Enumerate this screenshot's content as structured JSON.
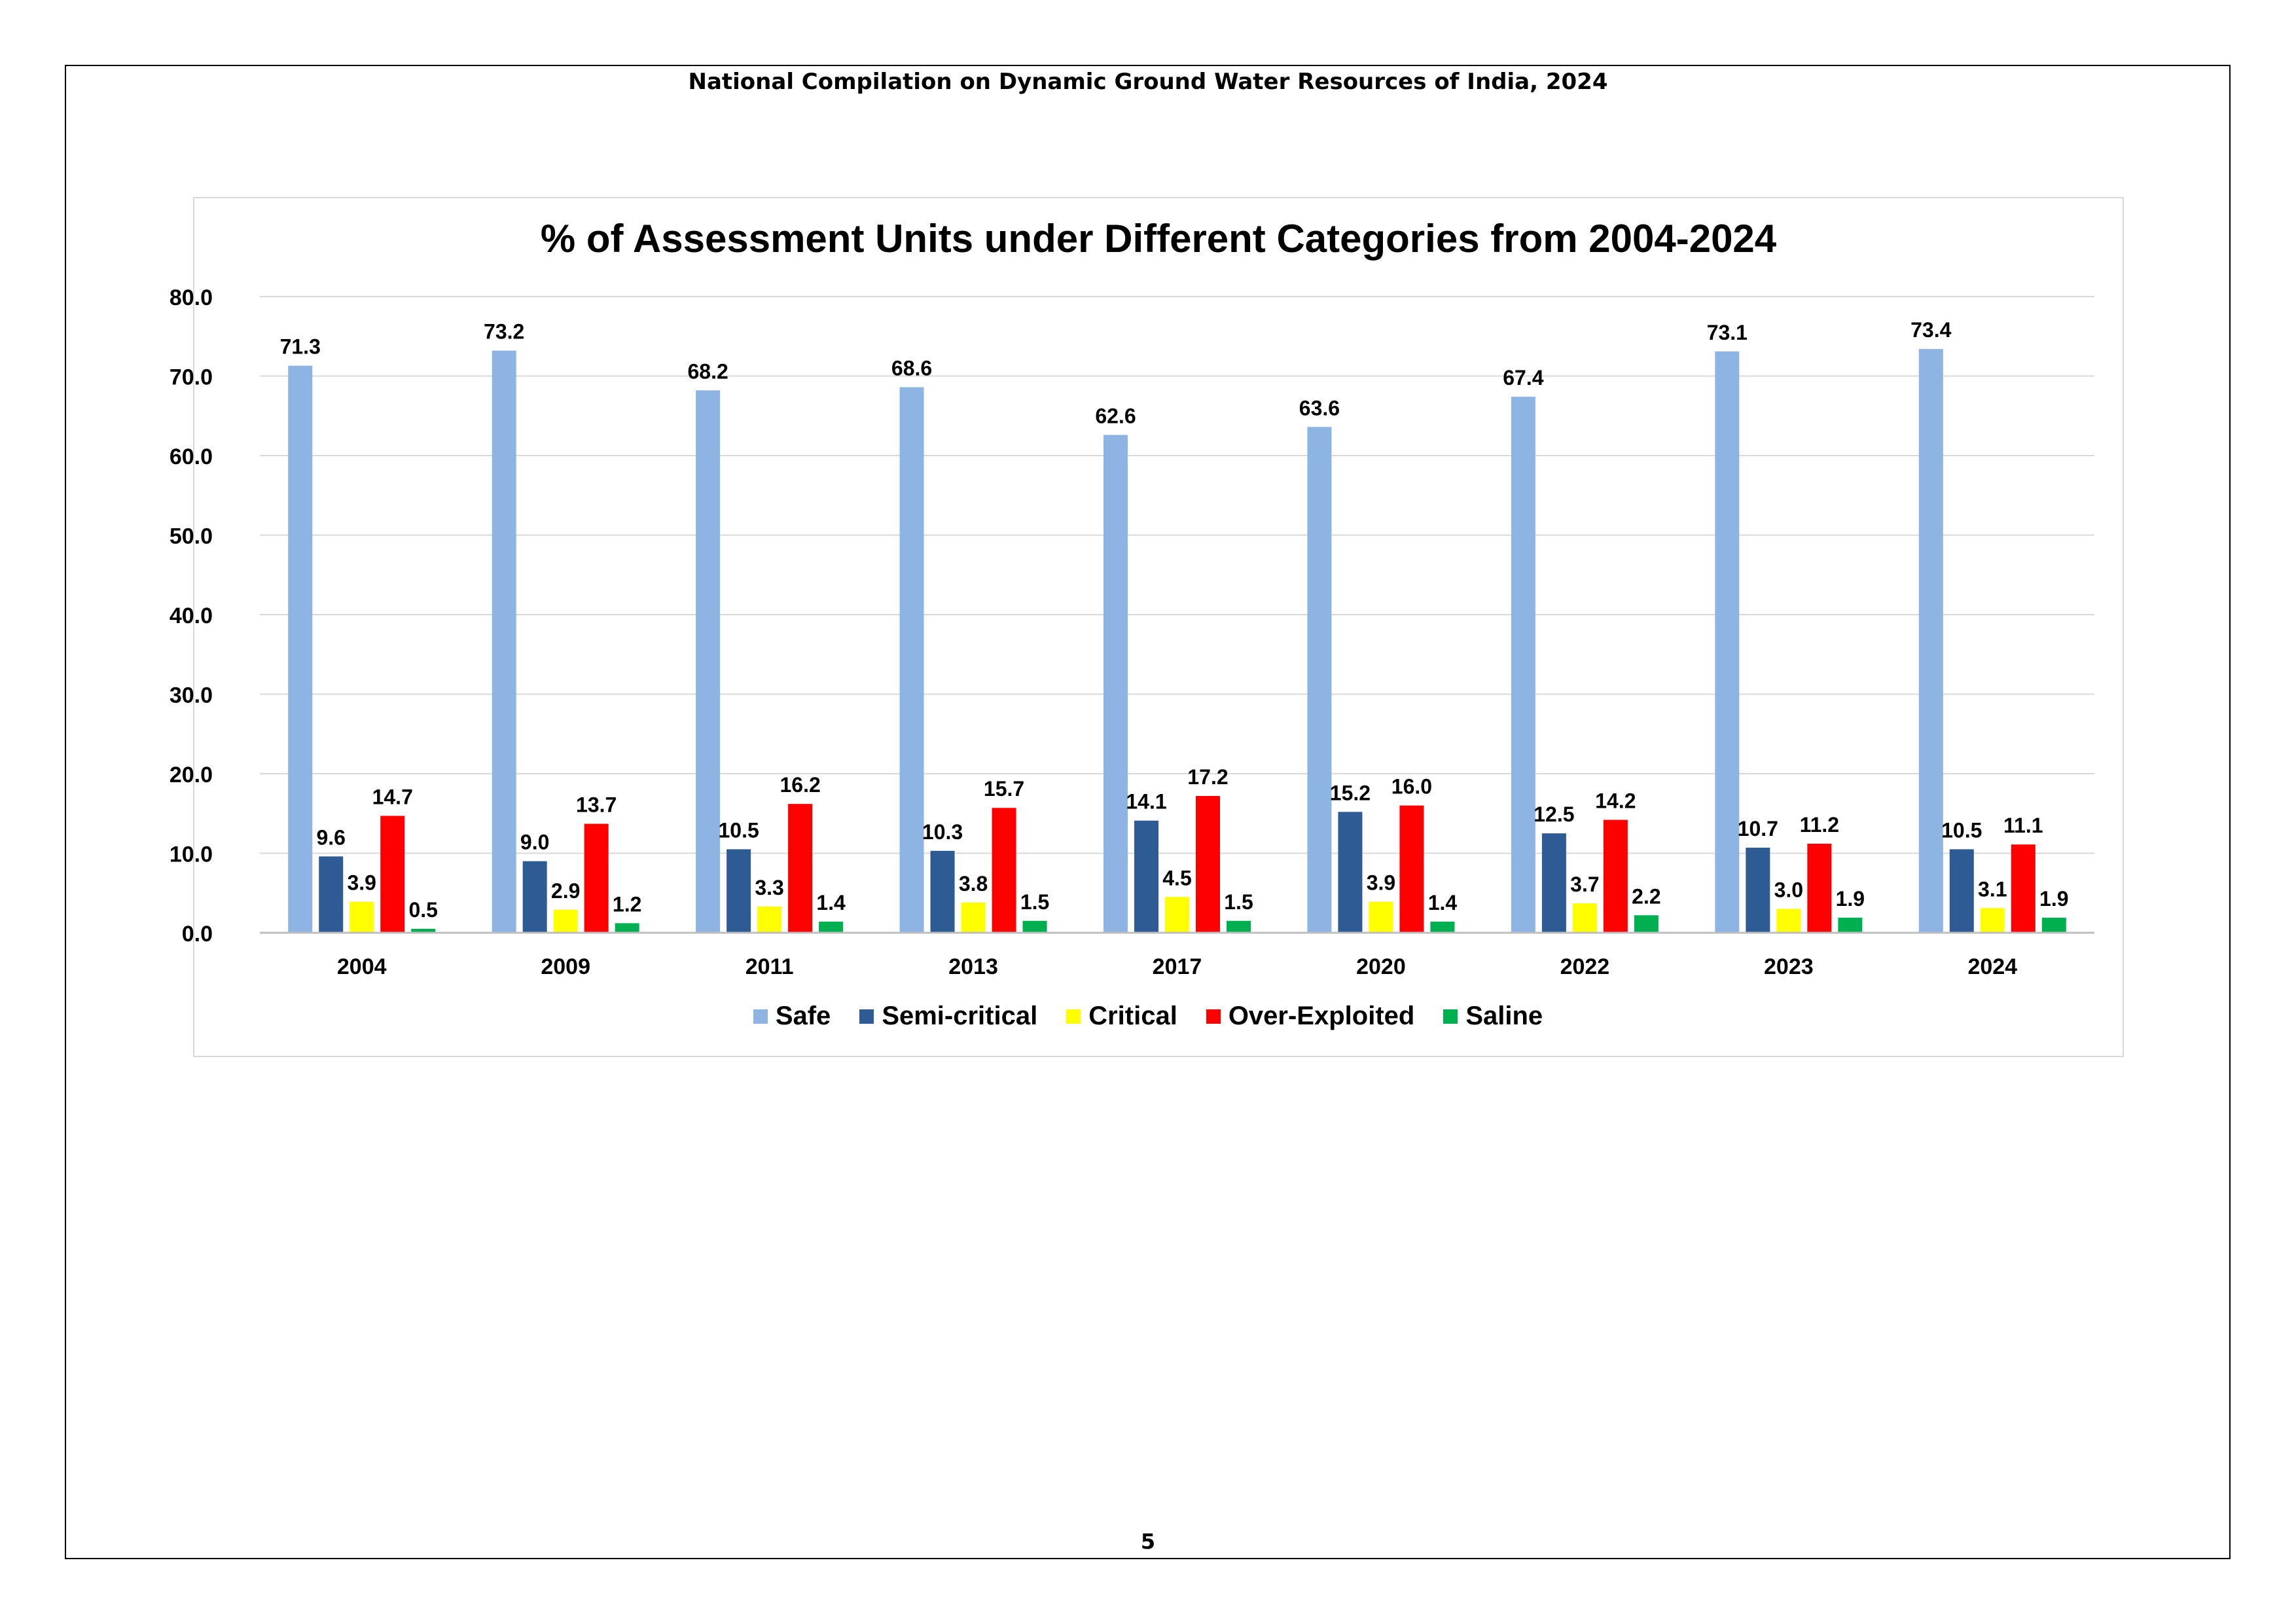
{
  "header": {
    "title": "National Compilation on Dynamic Ground Water Resources of India, 2024"
  },
  "page": {
    "number": "5"
  },
  "chart_data": {
    "type": "bar",
    "title": "% of Assessment Units under Different Categories from 2004-2024",
    "xlabel": "",
    "ylabel": "",
    "categories": [
      "2004",
      "2009",
      "2011",
      "2013",
      "2017",
      "2020",
      "2022",
      "2023",
      "2024"
    ],
    "ylim": [
      0,
      80
    ],
    "yticks": [
      "0.0",
      "10.0",
      "20.0",
      "30.0",
      "40.0",
      "50.0",
      "60.0",
      "70.0",
      "80.0"
    ],
    "grid": true,
    "legend_position": "bottom",
    "series": [
      {
        "name": "Safe",
        "color": "#8eb4e3",
        "values": [
          71.3,
          73.2,
          68.2,
          68.6,
          62.6,
          63.6,
          67.4,
          73.1,
          73.4
        ],
        "labels": [
          "71.3",
          "73.2",
          "68.2",
          "68.6",
          "62.6",
          "63.6",
          "67.4",
          "73.1",
          "73.4"
        ]
      },
      {
        "name": "Semi-critical",
        "color": "#2e5b94",
        "values": [
          9.6,
          9.0,
          10.5,
          10.3,
          14.1,
          15.2,
          12.5,
          10.7,
          10.5
        ],
        "labels": [
          "9.6",
          "9.0",
          "10.5",
          "10.3",
          "14.1",
          "15.2",
          "12.5",
          "10.7",
          "10.5"
        ]
      },
      {
        "name": "Critical",
        "color": "#ffff00",
        "values": [
          3.9,
          2.9,
          3.3,
          3.8,
          4.5,
          3.9,
          3.7,
          3.0,
          3.1
        ],
        "labels": [
          "3.9",
          "2.9",
          "3.3",
          "3.8",
          "4.5",
          "3.9",
          "3.7",
          "3.0",
          "3.1"
        ]
      },
      {
        "name": "Over-Exploited",
        "color": "#ff0000",
        "values": [
          14.7,
          13.7,
          16.2,
          15.7,
          17.2,
          16.0,
          14.2,
          11.2,
          11.1
        ],
        "labels": [
          "14.7",
          "13.7",
          "16.2",
          "15.7",
          "17.2",
          "16.0",
          "14.2",
          "11.2",
          "11.1"
        ]
      },
      {
        "name": "Saline",
        "color": "#00b050",
        "values": [
          0.5,
          1.2,
          1.4,
          1.5,
          1.5,
          1.4,
          2.2,
          1.9,
          1.9
        ],
        "labels": [
          "0.5",
          "1.2",
          "1.4",
          "1.5",
          "1.5",
          "1.4",
          "2.2",
          "1.9",
          "1.9"
        ]
      }
    ]
  }
}
